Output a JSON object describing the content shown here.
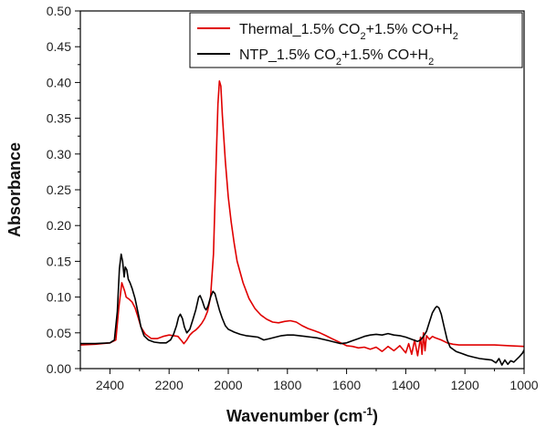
{
  "chart_data": {
    "type": "line",
    "xlabel": "Wavenumber (cm",
    "xlabel_sup": "-1",
    "xlabel_tail": ")",
    "ylabel": "Absorbance",
    "xlim": [
      2500,
      1000
    ],
    "ylim": [
      0.0,
      0.5
    ],
    "x_reversed": true,
    "x_ticks": [
      2400,
      2200,
      2000,
      1800,
      1600,
      1400,
      1200,
      1000
    ],
    "y_ticks": [
      0.0,
      0.05,
      0.1,
      0.15,
      0.2,
      0.25,
      0.3,
      0.35,
      0.4,
      0.45,
      0.5
    ],
    "legend_position": "top-right",
    "grid": false,
    "series": [
      {
        "name_parts": [
          "Thermal_1.5% CO",
          "2",
          "+1.5% CO+H",
          "2"
        ],
        "color": "#e00000",
        "points": [
          [
            2500,
            0.033
          ],
          [
            2450,
            0.034
          ],
          [
            2400,
            0.036
          ],
          [
            2380,
            0.04
          ],
          [
            2370,
            0.085
          ],
          [
            2360,
            0.12
          ],
          [
            2350,
            0.108
          ],
          [
            2345,
            0.1
          ],
          [
            2335,
            0.097
          ],
          [
            2325,
            0.093
          ],
          [
            2315,
            0.085
          ],
          [
            2305,
            0.072
          ],
          [
            2295,
            0.058
          ],
          [
            2280,
            0.048
          ],
          [
            2260,
            0.042
          ],
          [
            2240,
            0.042
          ],
          [
            2220,
            0.045
          ],
          [
            2200,
            0.047
          ],
          [
            2185,
            0.046
          ],
          [
            2170,
            0.045
          ],
          [
            2160,
            0.04
          ],
          [
            2150,
            0.035
          ],
          [
            2140,
            0.04
          ],
          [
            2130,
            0.047
          ],
          [
            2120,
            0.051
          ],
          [
            2110,
            0.054
          ],
          [
            2100,
            0.058
          ],
          [
            2090,
            0.063
          ],
          [
            2080,
            0.07
          ],
          [
            2070,
            0.08
          ],
          [
            2060,
            0.1
          ],
          [
            2050,
            0.16
          ],
          [
            2040,
            0.3
          ],
          [
            2035,
            0.37
          ],
          [
            2030,
            0.402
          ],
          [
            2025,
            0.395
          ],
          [
            2020,
            0.355
          ],
          [
            2010,
            0.29
          ],
          [
            2000,
            0.24
          ],
          [
            1990,
            0.205
          ],
          [
            1980,
            0.175
          ],
          [
            1970,
            0.15
          ],
          [
            1950,
            0.12
          ],
          [
            1930,
            0.098
          ],
          [
            1910,
            0.084
          ],
          [
            1890,
            0.075
          ],
          [
            1870,
            0.069
          ],
          [
            1850,
            0.065
          ],
          [
            1830,
            0.064
          ],
          [
            1810,
            0.066
          ],
          [
            1790,
            0.067
          ],
          [
            1770,
            0.065
          ],
          [
            1750,
            0.06
          ],
          [
            1730,
            0.056
          ],
          [
            1710,
            0.053
          ],
          [
            1690,
            0.05
          ],
          [
            1670,
            0.046
          ],
          [
            1650,
            0.042
          ],
          [
            1630,
            0.038
          ],
          [
            1610,
            0.034
          ],
          [
            1600,
            0.032
          ],
          [
            1580,
            0.031
          ],
          [
            1560,
            0.029
          ],
          [
            1540,
            0.03
          ],
          [
            1520,
            0.027
          ],
          [
            1500,
            0.03
          ],
          [
            1480,
            0.024
          ],
          [
            1460,
            0.031
          ],
          [
            1440,
            0.025
          ],
          [
            1420,
            0.032
          ],
          [
            1400,
            0.022
          ],
          [
            1390,
            0.035
          ],
          [
            1380,
            0.02
          ],
          [
            1370,
            0.04
          ],
          [
            1360,
            0.018
          ],
          [
            1350,
            0.044
          ],
          [
            1345,
            0.02
          ],
          [
            1340,
            0.05
          ],
          [
            1335,
            0.025
          ],
          [
            1330,
            0.046
          ],
          [
            1320,
            0.041
          ],
          [
            1310,
            0.045
          ],
          [
            1300,
            0.043
          ],
          [
            1280,
            0.04
          ],
          [
            1260,
            0.036
          ],
          [
            1240,
            0.034
          ],
          [
            1220,
            0.033
          ],
          [
            1200,
            0.033
          ],
          [
            1150,
            0.033
          ],
          [
            1100,
            0.033
          ],
          [
            1050,
            0.032
          ],
          [
            1000,
            0.031
          ]
        ]
      },
      {
        "name_parts": [
          "NTP_1.5% CO",
          "2",
          "+1.5% CO+H",
          "2"
        ],
        "color": "#000000",
        "points": [
          [
            2500,
            0.035
          ],
          [
            2450,
            0.035
          ],
          [
            2400,
            0.036
          ],
          [
            2385,
            0.04
          ],
          [
            2375,
            0.08
          ],
          [
            2368,
            0.14
          ],
          [
            2362,
            0.16
          ],
          [
            2357,
            0.15
          ],
          [
            2352,
            0.128
          ],
          [
            2348,
            0.142
          ],
          [
            2343,
            0.138
          ],
          [
            2338,
            0.125
          ],
          [
            2332,
            0.12
          ],
          [
            2325,
            0.112
          ],
          [
            2315,
            0.098
          ],
          [
            2305,
            0.078
          ],
          [
            2295,
            0.058
          ],
          [
            2285,
            0.046
          ],
          [
            2270,
            0.04
          ],
          [
            2250,
            0.037
          ],
          [
            2230,
            0.036
          ],
          [
            2210,
            0.036
          ],
          [
            2195,
            0.04
          ],
          [
            2185,
            0.048
          ],
          [
            2175,
            0.06
          ],
          [
            2168,
            0.072
          ],
          [
            2162,
            0.076
          ],
          [
            2155,
            0.07
          ],
          [
            2148,
            0.058
          ],
          [
            2140,
            0.05
          ],
          [
            2130,
            0.055
          ],
          [
            2120,
            0.068
          ],
          [
            2110,
            0.082
          ],
          [
            2100,
            0.1
          ],
          [
            2095,
            0.102
          ],
          [
            2088,
            0.095
          ],
          [
            2080,
            0.085
          ],
          [
            2075,
            0.082
          ],
          [
            2068,
            0.088
          ],
          [
            2060,
            0.1
          ],
          [
            2052,
            0.108
          ],
          [
            2045,
            0.105
          ],
          [
            2038,
            0.094
          ],
          [
            2030,
            0.082
          ],
          [
            2020,
            0.07
          ],
          [
            2010,
            0.06
          ],
          [
            2000,
            0.055
          ],
          [
            1980,
            0.051
          ],
          [
            1960,
            0.048
          ],
          [
            1940,
            0.046
          ],
          [
            1920,
            0.045
          ],
          [
            1900,
            0.044
          ],
          [
            1880,
            0.04
          ],
          [
            1860,
            0.042
          ],
          [
            1840,
            0.044
          ],
          [
            1820,
            0.046
          ],
          [
            1800,
            0.047
          ],
          [
            1780,
            0.047
          ],
          [
            1760,
            0.046
          ],
          [
            1740,
            0.045
          ],
          [
            1720,
            0.044
          ],
          [
            1700,
            0.043
          ],
          [
            1680,
            0.041
          ],
          [
            1660,
            0.039
          ],
          [
            1640,
            0.037
          ],
          [
            1620,
            0.035
          ],
          [
            1600,
            0.036
          ],
          [
            1580,
            0.039
          ],
          [
            1560,
            0.042
          ],
          [
            1540,
            0.045
          ],
          [
            1520,
            0.047
          ],
          [
            1500,
            0.048
          ],
          [
            1480,
            0.047
          ],
          [
            1460,
            0.049
          ],
          [
            1440,
            0.047
          ],
          [
            1420,
            0.046
          ],
          [
            1400,
            0.044
          ],
          [
            1380,
            0.041
          ],
          [
            1360,
            0.038
          ],
          [
            1350,
            0.04
          ],
          [
            1340,
            0.045
          ],
          [
            1330,
            0.052
          ],
          [
            1320,
            0.065
          ],
          [
            1310,
            0.078
          ],
          [
            1300,
            0.085
          ],
          [
            1295,
            0.087
          ],
          [
            1288,
            0.085
          ],
          [
            1280,
            0.076
          ],
          [
            1270,
            0.058
          ],
          [
            1260,
            0.04
          ],
          [
            1250,
            0.03
          ],
          [
            1230,
            0.024
          ],
          [
            1210,
            0.021
          ],
          [
            1190,
            0.018
          ],
          [
            1170,
            0.016
          ],
          [
            1150,
            0.014
          ],
          [
            1130,
            0.013
          ],
          [
            1110,
            0.012
          ],
          [
            1095,
            0.008
          ],
          [
            1085,
            0.014
          ],
          [
            1075,
            0.005
          ],
          [
            1065,
            0.012
          ],
          [
            1055,
            0.006
          ],
          [
            1045,
            0.011
          ],
          [
            1035,
            0.009
          ],
          [
            1025,
            0.013
          ],
          [
            1015,
            0.017
          ],
          [
            1005,
            0.022
          ],
          [
            1000,
            0.026
          ]
        ]
      }
    ]
  }
}
